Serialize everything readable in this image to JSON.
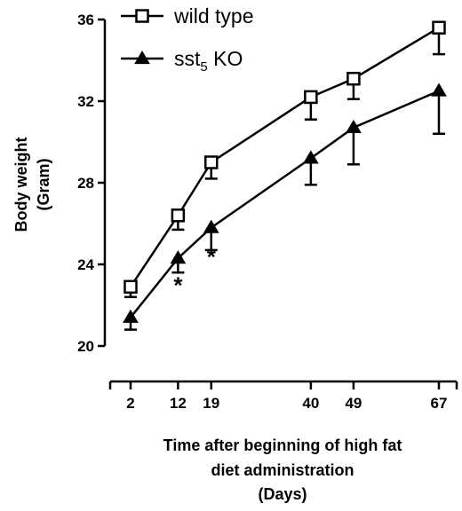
{
  "chart_data": {
    "type": "line",
    "title": "",
    "xlabel_lines": [
      "Time after beginning of high fat",
      "diet administration",
      "(Days)"
    ],
    "ylabel_lines": [
      "Body weight",
      "(Gram)"
    ],
    "xlim": [
      0,
      69
    ],
    "ylim": [
      20,
      36
    ],
    "x_ticks": [
      2,
      12,
      19,
      40,
      49,
      67
    ],
    "y_ticks": [
      20,
      24,
      28,
      32,
      36
    ],
    "legend_position": "top-center",
    "series": [
      {
        "name": "wild type",
        "marker": "open-square",
        "x": [
          2,
          12,
          19,
          40,
          49,
          67
        ],
        "y": [
          22.9,
          26.4,
          29.0,
          32.2,
          33.1,
          35.6
        ],
        "error_minus": [
          0.5,
          0.7,
          0.8,
          1.1,
          1.0,
          1.3
        ],
        "error_plus": [
          0,
          0,
          0,
          0,
          0,
          0
        ]
      },
      {
        "name": "sst",
        "name_subscript": "5",
        "name_suffix": " KO",
        "marker": "filled-triangle",
        "x": [
          2,
          12,
          19,
          40,
          49,
          67
        ],
        "y": [
          21.4,
          24.3,
          25.8,
          29.2,
          30.7,
          32.5
        ],
        "error_minus": [
          0.6,
          0.7,
          1.1,
          1.3,
          1.8,
          2.1
        ],
        "error_plus": [
          0,
          0,
          0,
          0,
          0,
          0
        ]
      }
    ],
    "annotations": [
      {
        "text": "*",
        "x": 12,
        "y": 23.1
      },
      {
        "text": "*",
        "x": 19,
        "y": 24.5
      }
    ]
  }
}
